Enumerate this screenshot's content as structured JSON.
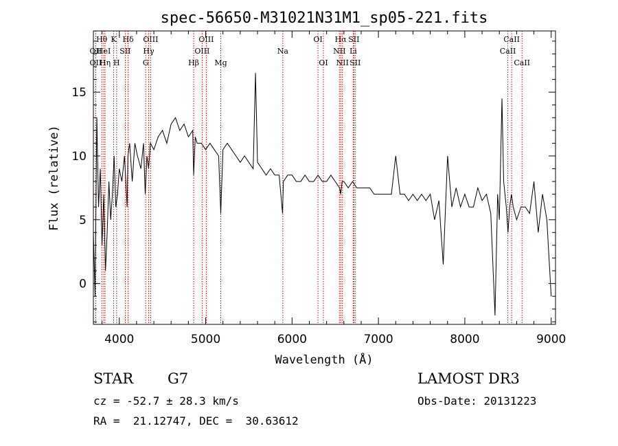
{
  "chart_data": {
    "type": "line",
    "title": "spec-56650-M31021N31M1_sp05-221.fits",
    "xlabel": "Wavelength (Å)",
    "ylabel": "Flux (relative)",
    "xlim": [
      3700,
      9050
    ],
    "ylim": [
      -3.2,
      19.8
    ],
    "x_ticks": [
      4000,
      5000,
      6000,
      7000,
      8000,
      9000
    ],
    "y_ticks": [
      0,
      5,
      10,
      15
    ],
    "x_tick_labels": [
      "4000",
      "5000",
      "6000",
      "7000",
      "8000",
      "9000"
    ],
    "y_tick_labels": [
      "0",
      "5",
      "10",
      "15"
    ],
    "grid": false,
    "line_color": "#000000",
    "marker_color": "#cc0000",
    "series": [
      {
        "x": [
          3700,
          3720,
          3740,
          3760,
          3780,
          3800,
          3820,
          3840,
          3860,
          3880,
          3900,
          3920,
          3940,
          3960,
          3980,
          4000,
          4030,
          4060,
          4090,
          4100,
          4120,
          4150,
          4180,
          4210,
          4250,
          4280,
          4300,
          4320,
          4340,
          4360,
          4400,
          4450,
          4500,
          4550,
          4600,
          4650,
          4700,
          4750,
          4800,
          4850,
          4861,
          4880,
          4900,
          4950,
          5000,
          5050,
          5100,
          5150,
          5175,
          5200,
          5250,
          5300,
          5350,
          5400,
          5450,
          5500,
          5550,
          5577,
          5600,
          5650,
          5700,
          5750,
          5800,
          5850,
          5890,
          5900,
          5950,
          6000,
          6050,
          6100,
          6150,
          6200,
          6250,
          6300,
          6350,
          6400,
          6450,
          6500,
          6550,
          6563,
          6580,
          6600,
          6650,
          6700,
          6750,
          6800,
          6850,
          6900,
          6950,
          7000,
          7050,
          7100,
          7150,
          7200,
          7250,
          7300,
          7350,
          7400,
          7450,
          7500,
          7550,
          7600,
          7650,
          7700,
          7750,
          7800,
          7850,
          7900,
          7950,
          8000,
          8050,
          8100,
          8150,
          8200,
          8250,
          8300,
          8350,
          8380,
          8400,
          8430,
          8450,
          8480,
          8500,
          8520,
          8540,
          8560,
          8580,
          8600,
          8650,
          8700,
          8750,
          8800,
          8850,
          8900,
          8950,
          9000
        ],
        "y": [
          4,
          -1,
          13,
          6,
          9,
          3,
          7,
          1,
          4,
          8,
          5,
          7,
          10,
          6,
          7,
          9,
          8,
          10,
          6,
          10,
          11,
          8,
          11,
          10,
          9,
          11,
          7,
          10,
          9,
          11,
          10.5,
          11.5,
          12,
          11,
          12.5,
          13,
          12,
          12.5,
          11.5,
          12,
          8.5,
          11.5,
          11,
          11,
          10.5,
          11,
          10.5,
          10,
          5.5,
          10.5,
          11,
          10.5,
          10,
          9.5,
          10,
          9.5,
          9,
          16.5,
          9.5,
          9,
          8.5,
          9,
          8.5,
          8.5,
          5.5,
          8,
          8.5,
          8.5,
          8,
          8,
          8.5,
          8,
          8,
          8.5,
          8,
          8,
          8.5,
          8,
          7.5,
          7,
          8,
          8,
          7.5,
          8,
          7.5,
          7.5,
          7.5,
          7.5,
          7,
          7,
          7,
          7,
          7,
          10,
          7,
          7,
          6.5,
          7,
          6.5,
          7,
          6.5,
          7,
          5,
          6.5,
          1.5,
          10,
          6,
          7.5,
          6,
          7,
          6,
          6,
          7.5,
          6.5,
          7,
          5.5,
          -2.5,
          7,
          5,
          14.5,
          8,
          6,
          4,
          6,
          7,
          6,
          5.5,
          5,
          6,
          6,
          5.5,
          8,
          4,
          7,
          5,
          -1
        ]
      }
    ],
    "line_markers": [
      {
        "label": "Hθ",
        "x": 3797,
        "row": 1
      },
      {
        "label": "OII",
        "x": 3727,
        "row": 2
      },
      {
        "label": "HeI",
        "x": 3820,
        "row": 2
      },
      {
        "label": "OII",
        "x": 3727,
        "row": 3
      },
      {
        "label": "Hη",
        "x": 3835,
        "row": 3
      },
      {
        "label": "K",
        "x": 3934,
        "row": 1
      },
      {
        "label": "SII",
        "x": 4069,
        "row": 2
      },
      {
        "label": "H",
        "x": 3969,
        "row": 3
      },
      {
        "label": "Hδ",
        "x": 4102,
        "row": 1
      },
      {
        "label": "OIII",
        "x": 4363,
        "row": 1
      },
      {
        "label": "Hγ",
        "x": 4340,
        "row": 2
      },
      {
        "label": "G",
        "x": 4305,
        "row": 3
      },
      {
        "label": "OIII",
        "x": 5007,
        "row": 1
      },
      {
        "label": "OIII",
        "x": 4959,
        "row": 2
      },
      {
        "label": "Hβ",
        "x": 4861,
        "row": 3
      },
      {
        "label": "Mg",
        "x": 5175,
        "row": 3
      },
      {
        "label": "Na",
        "x": 5893,
        "row": 2
      },
      {
        "label": "OI",
        "x": 6300,
        "row": 1
      },
      {
        "label": "OI",
        "x": 6363,
        "row": 3
      },
      {
        "label": "Hα",
        "x": 6563,
        "row": 1
      },
      {
        "label": "SII",
        "x": 6716,
        "row": 1
      },
      {
        "label": "NII",
        "x": 6548,
        "row": 2
      },
      {
        "label": "Li",
        "x": 6708,
        "row": 2
      },
      {
        "label": "NII",
        "x": 6583,
        "row": 3
      },
      {
        "label": "SII",
        "x": 6731,
        "row": 3
      },
      {
        "label": "CaII",
        "x": 8542,
        "row": 1
      },
      {
        "label": "CaII",
        "x": 8498,
        "row": 2
      },
      {
        "label": "CaII",
        "x": 8662,
        "row": 3
      }
    ]
  },
  "footer": {
    "object_class": "STAR",
    "subclass": "G7",
    "survey": "LAMOST DR3",
    "redshift": "cz = -52.7 ± 28.3 km/s",
    "obs_date": "Obs-Date: 20131223",
    "coords": "RA =  21.12747, DEC =  30.63612"
  }
}
